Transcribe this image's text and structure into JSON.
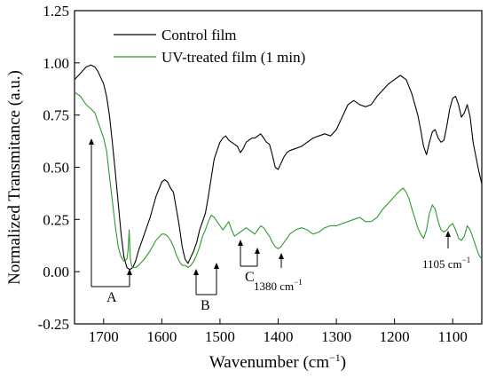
{
  "chart_data": {
    "type": "line",
    "xlabel": "Wavenumber (cm",
    "xlabel_sup": "−1",
    "xlabel_tail": ")",
    "ylabel": "Normalized Transmitance (a.u.)",
    "xlim": [
      1750,
      1050
    ],
    "ylim": [
      -0.25,
      1.25
    ],
    "x_reversed": true,
    "x_ticks": [
      "1700",
      "1600",
      "1500",
      "1400",
      "1300",
      "1200",
      "1100"
    ],
    "x_tick_values": [
      1700,
      1600,
      1500,
      1400,
      1300,
      1200,
      1100
    ],
    "y_ticks": [
      "-0.25",
      "0.00",
      "0.25",
      "0.50",
      "0.75",
      "1.00",
      "1.25"
    ],
    "y_tick_values": [
      -0.25,
      0,
      0.25,
      0.5,
      0.75,
      1.0,
      1.25
    ],
    "legend_position": "top-left",
    "series": [
      {
        "name": "Control film",
        "color": "#000000",
        "x": [
          1750,
          1740,
          1730,
          1722,
          1715,
          1710,
          1705,
          1700,
          1695,
          1690,
          1685,
          1680,
          1675,
          1670,
          1665,
          1660,
          1655,
          1650,
          1645,
          1640,
          1630,
          1620,
          1610,
          1600,
          1595,
          1590,
          1585,
          1580,
          1575,
          1570,
          1565,
          1560,
          1555,
          1550,
          1545,
          1540,
          1535,
          1530,
          1525,
          1520,
          1515,
          1510,
          1505,
          1500,
          1495,
          1490,
          1485,
          1480,
          1475,
          1470,
          1465,
          1460,
          1455,
          1450,
          1445,
          1440,
          1435,
          1430,
          1425,
          1420,
          1415,
          1410,
          1405,
          1400,
          1395,
          1390,
          1385,
          1380,
          1370,
          1360,
          1350,
          1340,
          1330,
          1320,
          1310,
          1300,
          1290,
          1280,
          1270,
          1260,
          1250,
          1240,
          1230,
          1220,
          1210,
          1200,
          1190,
          1180,
          1170,
          1160,
          1155,
          1150,
          1145,
          1140,
          1135,
          1130,
          1125,
          1120,
          1115,
          1110,
          1105,
          1100,
          1095,
          1090,
          1085,
          1080,
          1075,
          1070,
          1065,
          1060,
          1055,
          1050
        ],
        "y": [
          0.92,
          0.95,
          0.98,
          0.99,
          0.98,
          0.96,
          0.93,
          0.9,
          0.84,
          0.75,
          0.62,
          0.48,
          0.33,
          0.18,
          0.07,
          0.02,
          0.01,
          0.02,
          0.05,
          0.1,
          0.18,
          0.26,
          0.36,
          0.43,
          0.44,
          0.43,
          0.4,
          0.38,
          0.3,
          0.22,
          0.12,
          0.06,
          0.04,
          0.07,
          0.1,
          0.14,
          0.2,
          0.24,
          0.28,
          0.36,
          0.45,
          0.54,
          0.58,
          0.62,
          0.64,
          0.65,
          0.63,
          0.62,
          0.61,
          0.6,
          0.57,
          0.59,
          0.62,
          0.63,
          0.64,
          0.64,
          0.65,
          0.66,
          0.64,
          0.62,
          0.61,
          0.56,
          0.5,
          0.49,
          0.52,
          0.55,
          0.57,
          0.58,
          0.59,
          0.6,
          0.62,
          0.64,
          0.65,
          0.66,
          0.65,
          0.68,
          0.74,
          0.8,
          0.82,
          0.8,
          0.79,
          0.8,
          0.84,
          0.87,
          0.9,
          0.92,
          0.94,
          0.92,
          0.85,
          0.75,
          0.68,
          0.6,
          0.56,
          0.62,
          0.67,
          0.68,
          0.64,
          0.62,
          0.63,
          0.7,
          0.78,
          0.83,
          0.84,
          0.8,
          0.74,
          0.76,
          0.8,
          0.74,
          0.62,
          0.55,
          0.48,
          0.42
        ]
      },
      {
        "name": "UV-treated film (1 min)",
        "color": "#2e9a2e",
        "x": [
          1750,
          1740,
          1730,
          1722,
          1715,
          1710,
          1705,
          1700,
          1695,
          1690,
          1685,
          1680,
          1675,
          1670,
          1665,
          1660,
          1658,
          1656,
          1654,
          1652,
          1650,
          1645,
          1640,
          1630,
          1620,
          1610,
          1600,
          1595,
          1590,
          1585,
          1580,
          1575,
          1570,
          1565,
          1560,
          1555,
          1550,
          1545,
          1540,
          1535,
          1530,
          1525,
          1520,
          1515,
          1510,
          1505,
          1500,
          1495,
          1490,
          1485,
          1480,
          1475,
          1470,
          1465,
          1460,
          1455,
          1450,
          1445,
          1440,
          1435,
          1430,
          1425,
          1420,
          1415,
          1410,
          1405,
          1400,
          1395,
          1390,
          1380,
          1370,
          1360,
          1350,
          1340,
          1330,
          1320,
          1310,
          1300,
          1290,
          1280,
          1270,
          1260,
          1250,
          1240,
          1230,
          1220,
          1210,
          1200,
          1190,
          1185,
          1180,
          1175,
          1170,
          1160,
          1155,
          1150,
          1145,
          1140,
          1135,
          1130,
          1125,
          1120,
          1115,
          1110,
          1105,
          1100,
          1095,
          1090,
          1085,
          1080,
          1075,
          1070,
          1065,
          1060,
          1055,
          1050
        ],
        "y": [
          0.86,
          0.84,
          0.8,
          0.78,
          0.76,
          0.72,
          0.68,
          0.64,
          0.58,
          0.46,
          0.34,
          0.22,
          0.12,
          0.07,
          0.05,
          0.06,
          0.1,
          0.2,
          0.06,
          0.03,
          0.02,
          0.02,
          0.03,
          0.06,
          0.1,
          0.15,
          0.18,
          0.18,
          0.17,
          0.15,
          0.12,
          0.08,
          0.05,
          0.03,
          0.03,
          0.02,
          0.03,
          0.05,
          0.08,
          0.12,
          0.17,
          0.2,
          0.24,
          0.27,
          0.26,
          0.24,
          0.22,
          0.2,
          0.22,
          0.24,
          0.2,
          0.17,
          0.18,
          0.19,
          0.2,
          0.21,
          0.2,
          0.19,
          0.18,
          0.2,
          0.22,
          0.21,
          0.19,
          0.17,
          0.14,
          0.12,
          0.11,
          0.12,
          0.14,
          0.18,
          0.2,
          0.21,
          0.2,
          0.18,
          0.19,
          0.21,
          0.22,
          0.22,
          0.23,
          0.24,
          0.25,
          0.26,
          0.24,
          0.24,
          0.26,
          0.3,
          0.33,
          0.36,
          0.39,
          0.4,
          0.38,
          0.35,
          0.3,
          0.21,
          0.18,
          0.16,
          0.2,
          0.28,
          0.32,
          0.3,
          0.24,
          0.2,
          0.19,
          0.2,
          0.22,
          0.23,
          0.2,
          0.16,
          0.15,
          0.17,
          0.22,
          0.2,
          0.16,
          0.12,
          0.08,
          0.06
        ]
      }
    ]
  },
  "annotations": {
    "A": "A",
    "B": "B",
    "C": "C",
    "peak_1380": "1380 cm",
    "peak_1105": "1105 cm",
    "unit_sup": "−1"
  }
}
